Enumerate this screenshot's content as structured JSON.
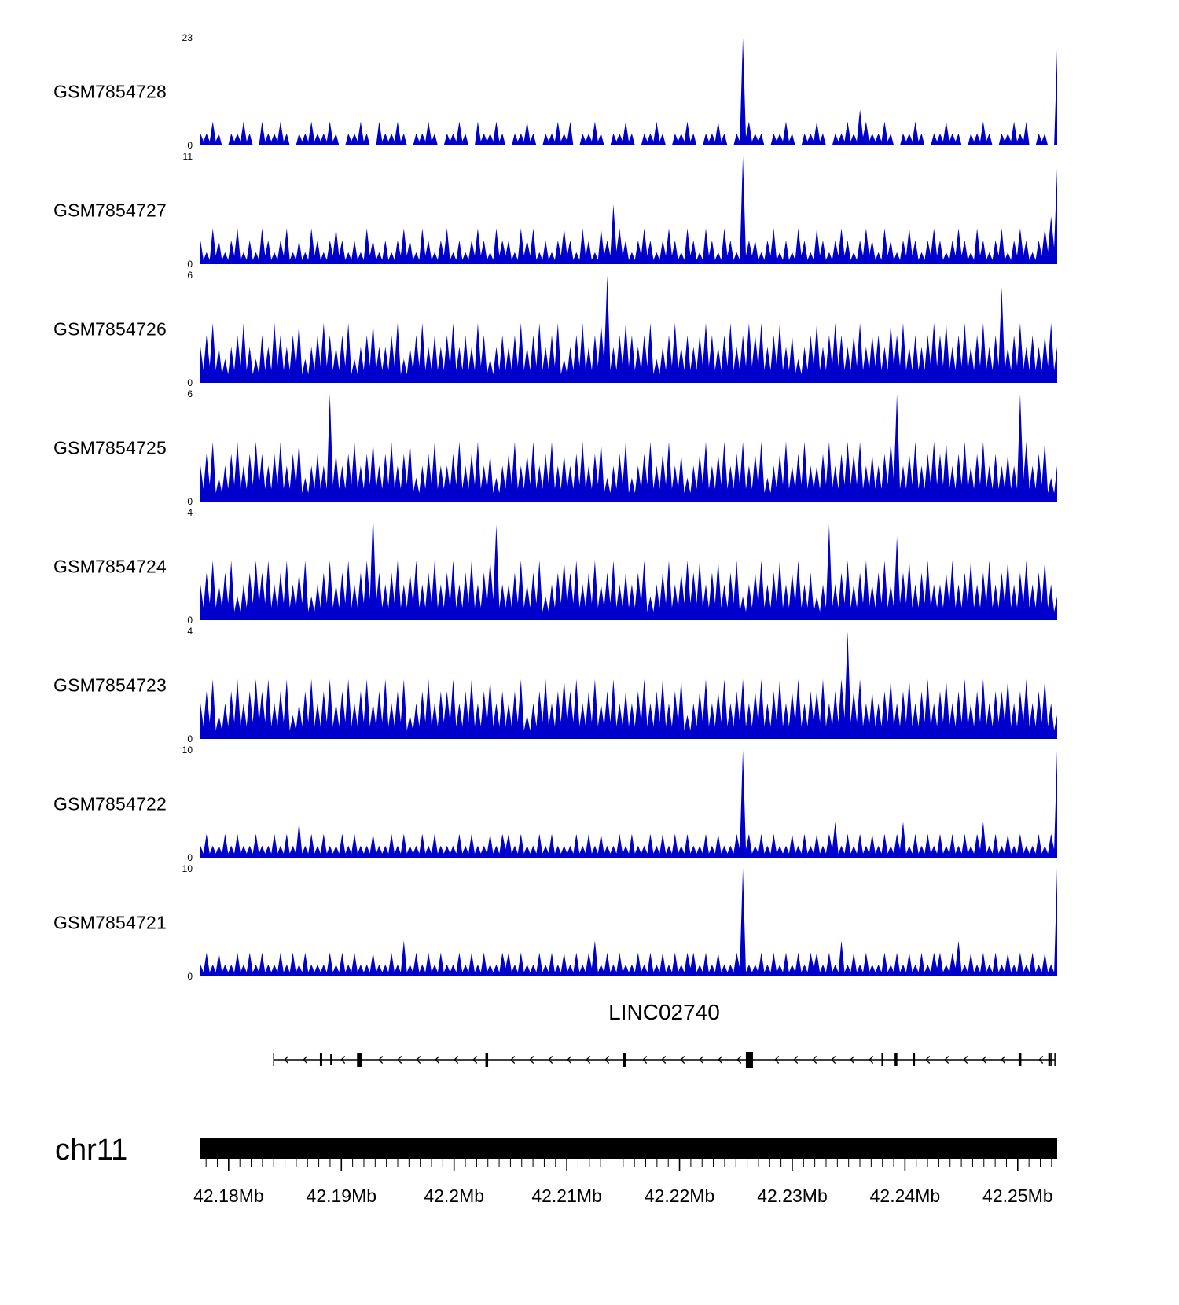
{
  "chart_data": {
    "type": "area",
    "description": "Genome browser coverage tracks",
    "chromosome": "chr11",
    "signal_color": "#0000CC",
    "y_zero_label": "0",
    "profile_encoding": "digits 0-9 = fraction of track ymax, left-to-right across the region",
    "x_axis": {
      "min_mb": 42.1775,
      "max_mb": 42.2535,
      "ticks_mb": [
        42.18,
        42.19,
        42.2,
        42.21,
        42.22,
        42.23,
        42.24,
        42.25
      ],
      "tick_labels": [
        "42.18Mb",
        "42.19Mb",
        "42.2Mb",
        "42.21Mb",
        "42.22Mb",
        "42.23Mb",
        "42.24Mb",
        "42.25Mb"
      ],
      "minor_tick_interval_mb": 0.001
    },
    "tracks": [
      {
        "name": "GSM7854728",
        "ymax": 23,
        "profile": "1121011210 2112101121 1210112102 1121011210 1121021121 0112101121 2011210112 1011210112 1011210192 1101121011 2101121321 1210112101 1211011210 1121201108"
      },
      {
        "name": "GSM7854727",
        "ymax": 11,
        "profile": "2132123121 3212312132 1232121321 2123213212 3121232132 2132312123 2132132532 1232123213 2132132192 2123121321 3212321232 1321232123 2123213212 3123212348"
      },
      {
        "name": "GSM7854726",
        "ymax": 6,
        "profile": "3453234532 4354345234 5434523453 3452345343 4534354234 3453453452 3453459345 4345234534 3454345345 4534534234 5345434534 4354534345 4534534534 8345343453"
      },
      {
        "name": "GSM7854725",
        "ymax": 6,
        "profile": "3452345345 4345345234 3943453453 4534523453 3453453423 4534534534 3453452345 2345345342 3453453453 4523453453 3453454534 3459345345 4534534534 3439534523"
      },
      {
        "name": "GSM7854724",
        "ymax": 4,
        "profile": "3453452345 4534534523 4534534594 3453453453 4534534583 3453452345 4534534534 3452345345 4534534523 4534534534 2383453453 4537453453 3453453453 4534534532"
      },
      {
        "name": "GSM7854723",
        "ymax": 4,
        "profile": "3452345345 4534523453 4534534534 5345234534 4534534534 3452345345 4534534534 3453453452 3453453453 4534534534 4534594534 3453453453 4534534534 4534534532"
      },
      {
        "name": "GSM7854722",
        "ymax": 10,
        "profile": "1211212112 1121213121 2112121121 1212112121 1121211212 2121121211 1212121121 2112121212 1121211292 1212112121 2123121212 1212312121 2121212312 1212112129"
      },
      {
        "name": "GSM7854721",
        "ymax": 10,
        "profile": "1212112121 2112121211 1212121121 1213121212 1121212112 2121121212 1212312121 1212121212 2121211291 1212121212 2121312121 1212121212 2123121212 1212121219"
      }
    ],
    "gene": {
      "name": "LINC02740",
      "strand": "-",
      "start_mb": 42.184,
      "end_mb": 42.2533,
      "exons": [
        {
          "mb": 42.1882,
          "w": 3,
          "h": 16
        },
        {
          "mb": 42.1891,
          "w": 2.5,
          "h": 14
        },
        {
          "mb": 42.1916,
          "w": 6,
          "h": 18
        },
        {
          "mb": 42.2029,
          "w": 3.5,
          "h": 18
        },
        {
          "mb": 42.2151,
          "w": 3.5,
          "h": 18
        },
        {
          "mb": 42.2262,
          "w": 9,
          "h": 20
        },
        {
          "mb": 42.238,
          "w": 2.5,
          "h": 16
        },
        {
          "mb": 42.2392,
          "w": 3.5,
          "h": 16
        },
        {
          "mb": 42.2408,
          "w": 2.5,
          "h": 16
        },
        {
          "mb": 42.2502,
          "w": 3.5,
          "h": 16
        },
        {
          "mb": 42.2528,
          "w": 2.5,
          "h": 16
        }
      ]
    }
  }
}
